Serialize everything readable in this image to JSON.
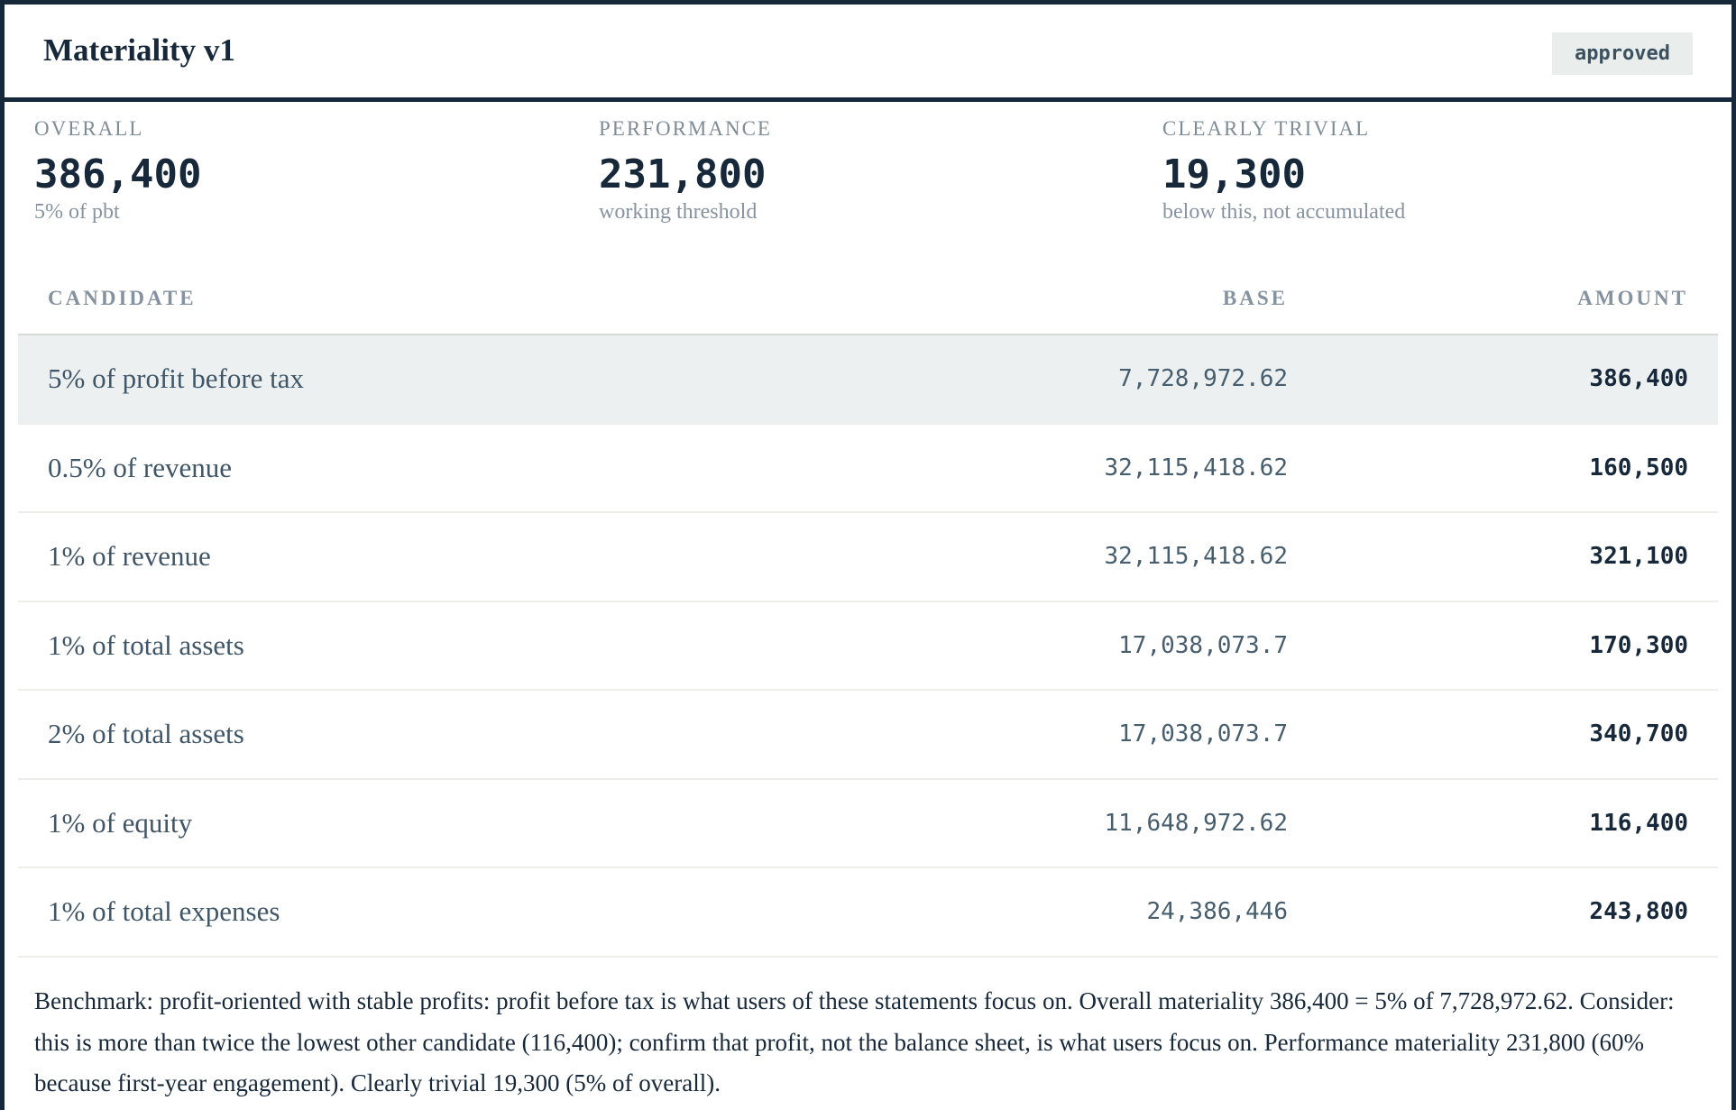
{
  "header": {
    "title": "Materiality v1",
    "status_badge": "approved"
  },
  "metrics": [
    {
      "label": "OVERALL",
      "value": "386,400",
      "sub": "5% of pbt"
    },
    {
      "label": "PERFORMANCE",
      "value": "231,800",
      "sub": "working threshold"
    },
    {
      "label": "CLEARLY TRIVIAL",
      "value": "19,300",
      "sub": "below this, not accumulated"
    }
  ],
  "table": {
    "headers": {
      "candidate": "CANDIDATE",
      "base": "BASE",
      "amount": "AMOUNT"
    },
    "selected_row": 0,
    "rows": [
      {
        "candidate": "5% of profit before tax",
        "base": "7,728,972.62",
        "amount": "386,400"
      },
      {
        "candidate": "0.5% of revenue",
        "base": "32,115,418.62",
        "amount": "160,500"
      },
      {
        "candidate": "1% of revenue",
        "base": "32,115,418.62",
        "amount": "321,100"
      },
      {
        "candidate": "1% of total assets",
        "base": "17,038,073.7",
        "amount": "170,300"
      },
      {
        "candidate": "2% of total assets",
        "base": "17,038,073.7",
        "amount": "340,700"
      },
      {
        "candidate": "1% of equity",
        "base": "11,648,972.62",
        "amount": "116,400"
      },
      {
        "candidate": "1% of total expenses",
        "base": "24,386,446",
        "amount": "243,800"
      }
    ]
  },
  "note": "Benchmark: profit-oriented with stable profits: profit before tax is what users of these statements focus on. Overall materiality 386,400 = 5% of 7,728,972.62. Consider: this is more than twice the lowest other candidate (116,400); confirm that profit, not the balance sheet, is what users focus on. Performance materiality 231,800 (60% because first-year engagement). Clearly trivial 19,300 (5% of overall).",
  "colors": {
    "ink": "#16283a",
    "selected_row_bg": "#ecf0f0",
    "badge_bg": "#e9eeec"
  }
}
